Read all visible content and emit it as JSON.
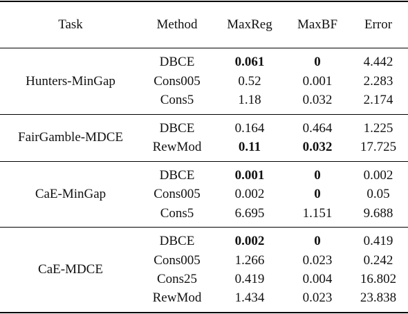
{
  "table": {
    "headers": [
      "Task",
      "Method",
      "MaxReg",
      "MaxBF",
      "Error"
    ],
    "groups": [
      {
        "task": "Hunters-MinGap",
        "rows": [
          {
            "method": "DBCE",
            "maxreg": "0.061",
            "maxbf": "0",
            "error": "4.442",
            "bold_maxreg": true,
            "bold_maxbf": true
          },
          {
            "method": "Cons005",
            "maxreg": "0.52",
            "maxbf": "0.001",
            "error": "2.283",
            "bold_maxreg": false,
            "bold_maxbf": false
          },
          {
            "method": "Cons5",
            "maxreg": "1.18",
            "maxbf": "0.032",
            "error": "2.174",
            "bold_maxreg": false,
            "bold_maxbf": false
          }
        ]
      },
      {
        "task": "FairGamble-MDCE",
        "rows": [
          {
            "method": "DBCE",
            "maxreg": "0.164",
            "maxbf": "0.464",
            "error": "1.225",
            "bold_maxreg": false,
            "bold_maxbf": false
          },
          {
            "method": "RewMod",
            "maxreg": "0.11",
            "maxbf": "0.032",
            "error": "17.725",
            "bold_maxreg": true,
            "bold_maxbf": true
          }
        ]
      },
      {
        "task": "CaE-MinGap",
        "rows": [
          {
            "method": "DBCE",
            "maxreg": "0.001",
            "maxbf": "0",
            "error": "0.002",
            "bold_maxreg": true,
            "bold_maxbf": true
          },
          {
            "method": "Cons005",
            "maxreg": "0.002",
            "maxbf": "0",
            "error": "0.05",
            "bold_maxreg": false,
            "bold_maxbf": true
          },
          {
            "method": "Cons5",
            "maxreg": "6.695",
            "maxbf": "1.151",
            "error": "9.688",
            "bold_maxreg": false,
            "bold_maxbf": false
          }
        ]
      },
      {
        "task": "CaE-MDCE",
        "rows": [
          {
            "method": "DBCE",
            "maxreg": "0.002",
            "maxbf": "0",
            "error": "0.419",
            "bold_maxreg": true,
            "bold_maxbf": true
          },
          {
            "method": "Cons005",
            "maxreg": "1.266",
            "maxbf": "0.023",
            "error": "0.242",
            "bold_maxreg": false,
            "bold_maxbf": false
          },
          {
            "method": "Cons25",
            "maxreg": "0.419",
            "maxbf": "0.004",
            "error": "16.802",
            "bold_maxreg": false,
            "bold_maxbf": false
          },
          {
            "method": "RewMod",
            "maxreg": "1.434",
            "maxbf": "0.023",
            "error": "23.838",
            "bold_maxreg": false,
            "bold_maxbf": false
          }
        ]
      }
    ]
  }
}
